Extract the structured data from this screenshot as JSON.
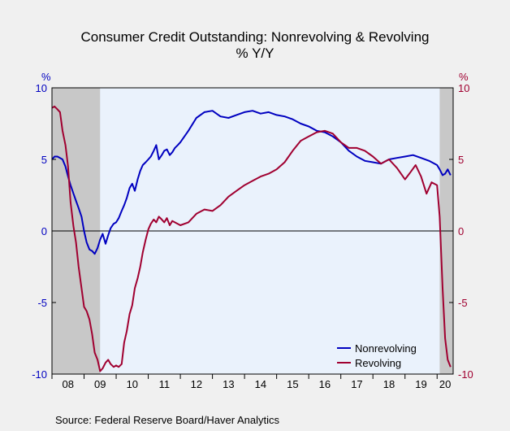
{
  "chart_data": {
    "type": "line",
    "title": "Consumer Credit Outstanding: Nonrevolving & Revolving",
    "subtitle": "% Y/Y",
    "left_axis": {
      "unit": "%",
      "ylim": [
        -10,
        10
      ],
      "ticks": [
        "10",
        "5",
        "0",
        "-5",
        "-10"
      ]
    },
    "right_axis": {
      "unit": "%",
      "ylim": [
        -10,
        10
      ],
      "ticks": [
        "10",
        "5",
        "0",
        "-5",
        "-10"
      ]
    },
    "x_axis": {
      "xlim": [
        2008.0,
        2020.5
      ],
      "ticks": [
        "08",
        "09",
        "10",
        "11",
        "12",
        "13",
        "14",
        "15",
        "16",
        "17",
        "18",
        "19",
        "20"
      ]
    },
    "recessions": [
      [
        2008.0,
        2009.5
      ],
      [
        2020.08,
        2020.5
      ]
    ],
    "zero_line": true,
    "legend": {
      "placement": "bottom-right"
    },
    "series": [
      {
        "name": "Nonrevolving",
        "color": "#0000c0",
        "x": [
          2008.0,
          2008.08,
          2008.17,
          2008.25,
          2008.33,
          2008.42,
          2008.5,
          2008.58,
          2008.67,
          2008.75,
          2008.83,
          2008.92,
          2009.0,
          2009.08,
          2009.17,
          2009.25,
          2009.33,
          2009.42,
          2009.5,
          2009.58,
          2009.67,
          2009.75,
          2009.83,
          2009.92,
          2010.0,
          2010.08,
          2010.17,
          2010.25,
          2010.33,
          2010.42,
          2010.5,
          2010.58,
          2010.67,
          2010.75,
          2010.83,
          2010.92,
          2011.0,
          2011.08,
          2011.17,
          2011.25,
          2011.33,
          2011.42,
          2011.5,
          2011.58,
          2011.67,
          2011.75,
          2011.83,
          2011.92,
          2012.0,
          2012.25,
          2012.5,
          2012.75,
          2013.0,
          2013.25,
          2013.5,
          2013.75,
          2014.0,
          2014.25,
          2014.5,
          2014.75,
          2015.0,
          2015.25,
          2015.5,
          2015.75,
          2016.0,
          2016.25,
          2016.5,
          2016.75,
          2017.0,
          2017.25,
          2017.5,
          2017.75,
          2018.0,
          2018.25,
          2018.5,
          2018.75,
          2019.0,
          2019.25,
          2019.5,
          2019.75,
          2020.0,
          2020.08,
          2020.17,
          2020.25,
          2020.33,
          2020.42
        ],
        "values": [
          5.0,
          5.2,
          5.2,
          5.1,
          5.0,
          4.5,
          3.8,
          3.2,
          2.6,
          2.1,
          1.6,
          1.0,
          0.0,
          -0.8,
          -1.3,
          -1.4,
          -1.6,
          -1.2,
          -0.6,
          -0.2,
          -0.9,
          -0.3,
          0.2,
          0.5,
          0.6,
          0.9,
          1.4,
          1.8,
          2.3,
          3.0,
          3.3,
          2.8,
          3.6,
          4.2,
          4.6,
          4.8,
          5.0,
          5.2,
          5.6,
          6.0,
          5.0,
          5.3,
          5.6,
          5.7,
          5.3,
          5.5,
          5.8,
          6.0,
          6.2,
          7.0,
          7.9,
          8.3,
          8.4,
          8.0,
          7.9,
          8.1,
          8.3,
          8.4,
          8.2,
          8.3,
          8.1,
          8.0,
          7.8,
          7.5,
          7.3,
          7.0,
          6.9,
          6.6,
          6.2,
          5.6,
          5.2,
          4.9,
          4.8,
          4.7,
          5.0,
          5.1,
          5.2,
          5.3,
          5.1,
          4.9,
          4.6,
          4.3,
          3.9,
          4.0,
          4.3,
          3.9
        ]
      },
      {
        "name": "Revolving",
        "color": "#a00030",
        "x": [
          2008.0,
          2008.08,
          2008.17,
          2008.25,
          2008.33,
          2008.42,
          2008.5,
          2008.58,
          2008.67,
          2008.75,
          2008.83,
          2008.92,
          2009.0,
          2009.08,
          2009.17,
          2009.25,
          2009.33,
          2009.42,
          2009.5,
          2009.58,
          2009.67,
          2009.75,
          2009.83,
          2009.92,
          2010.0,
          2010.08,
          2010.17,
          2010.25,
          2010.33,
          2010.42,
          2010.5,
          2010.58,
          2010.67,
          2010.75,
          2010.83,
          2010.92,
          2011.0,
          2011.08,
          2011.17,
          2011.25,
          2011.33,
          2011.42,
          2011.5,
          2011.58,
          2011.67,
          2011.75,
          2012.0,
          2012.25,
          2012.5,
          2012.75,
          2013.0,
          2013.25,
          2013.5,
          2013.75,
          2014.0,
          2014.25,
          2014.5,
          2014.75,
          2015.0,
          2015.25,
          2015.5,
          2015.75,
          2016.0,
          2016.25,
          2016.5,
          2016.75,
          2017.0,
          2017.25,
          2017.5,
          2017.75,
          2018.0,
          2018.25,
          2018.5,
          2018.75,
          2019.0,
          2019.17,
          2019.33,
          2019.5,
          2019.67,
          2019.83,
          2020.0,
          2020.08,
          2020.17,
          2020.25,
          2020.33,
          2020.42
        ],
        "values": [
          8.6,
          8.7,
          8.5,
          8.3,
          7.0,
          6.0,
          4.5,
          2.0,
          0.3,
          -0.8,
          -2.5,
          -4.0,
          -5.3,
          -5.6,
          -6.2,
          -7.2,
          -8.5,
          -9.0,
          -9.8,
          -9.6,
          -9.2,
          -9.0,
          -9.3,
          -9.5,
          -9.4,
          -9.5,
          -9.3,
          -7.8,
          -7.0,
          -5.8,
          -5.2,
          -4.0,
          -3.3,
          -2.5,
          -1.5,
          -0.6,
          0.1,
          0.5,
          0.8,
          0.6,
          1.0,
          0.8,
          0.6,
          0.9,
          0.4,
          0.7,
          0.4,
          0.6,
          1.2,
          1.5,
          1.4,
          1.8,
          2.4,
          2.8,
          3.2,
          3.5,
          3.8,
          4.0,
          4.3,
          4.8,
          5.6,
          6.3,
          6.6,
          6.9,
          7.0,
          6.8,
          6.2,
          5.8,
          5.8,
          5.6,
          5.2,
          4.7,
          5.0,
          4.4,
          3.6,
          4.1,
          4.6,
          3.8,
          2.6,
          3.4,
          3.2,
          1.0,
          -4.0,
          -7.5,
          -9.0,
          -9.5
        ]
      }
    ],
    "source": "Source:  Federal Reserve Board/Haver Analytics"
  }
}
